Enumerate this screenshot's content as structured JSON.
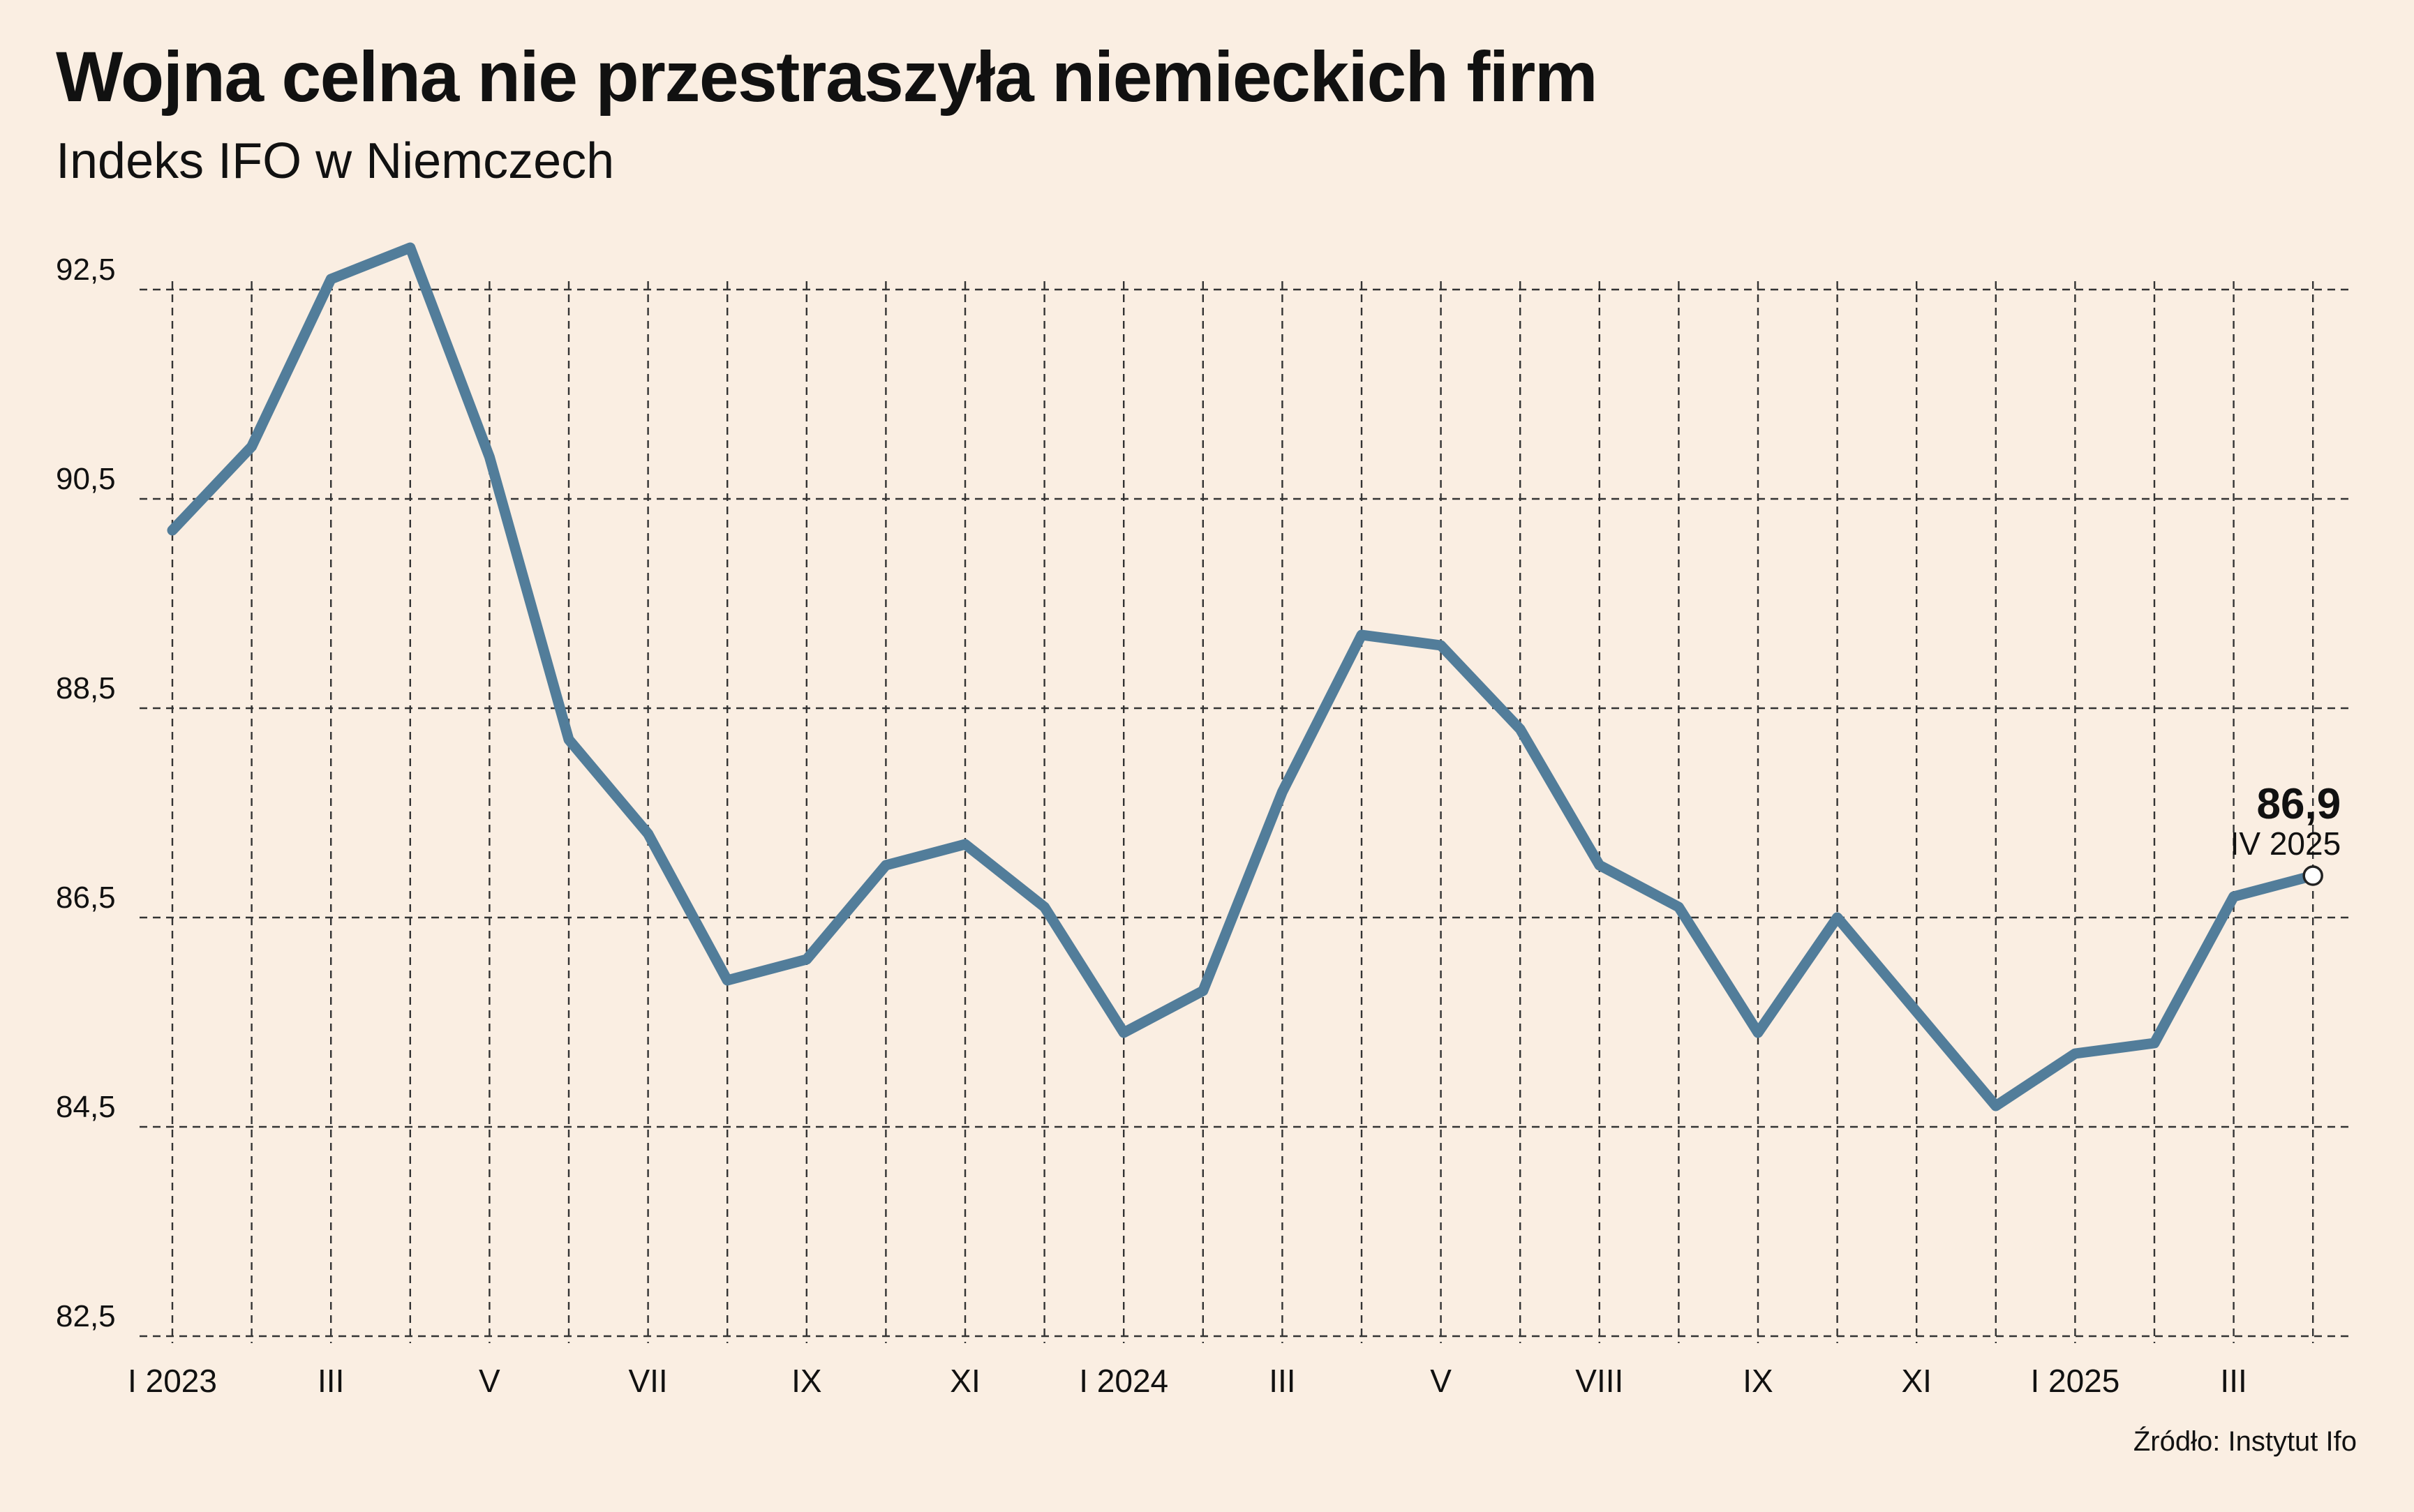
{
  "title": "Wojna celna nie przestraszyła niemieckich firm",
  "subtitle": "Indeks IFO w Niemczech",
  "source": "Źródło: Instytut Ifo",
  "colors": {
    "background": "#faeee2",
    "line": "#527d9a",
    "grid": "#333333",
    "text": "#111111"
  },
  "chart_data": {
    "type": "line",
    "x_labels": [
      "I 2023",
      "III",
      "V",
      "VII",
      "IX",
      "XI",
      "I 2024",
      "III",
      "V",
      "VIII",
      "IX",
      "XI",
      "I 2025",
      "III"
    ],
    "y_ticks": [
      "82,5",
      "84,5",
      "86,5",
      "88,5",
      "90,5",
      "92,5"
    ],
    "ylim": [
      82.5,
      92.5
    ],
    "grid": true,
    "series": [
      {
        "values": [
          90.2,
          91.0,
          92.6,
          92.9,
          90.9,
          88.2,
          87.3,
          85.9,
          86.1,
          87.0,
          87.2,
          86.6,
          85.4,
          85.8,
          87.7,
          89.2,
          89.1,
          88.3,
          87.0,
          86.6,
          85.4,
          86.5,
          85.6,
          84.7,
          85.2,
          85.3,
          86.7,
          86.9
        ]
      }
    ],
    "annotation": {
      "value": "86,9",
      "label": "IV 2025"
    }
  }
}
